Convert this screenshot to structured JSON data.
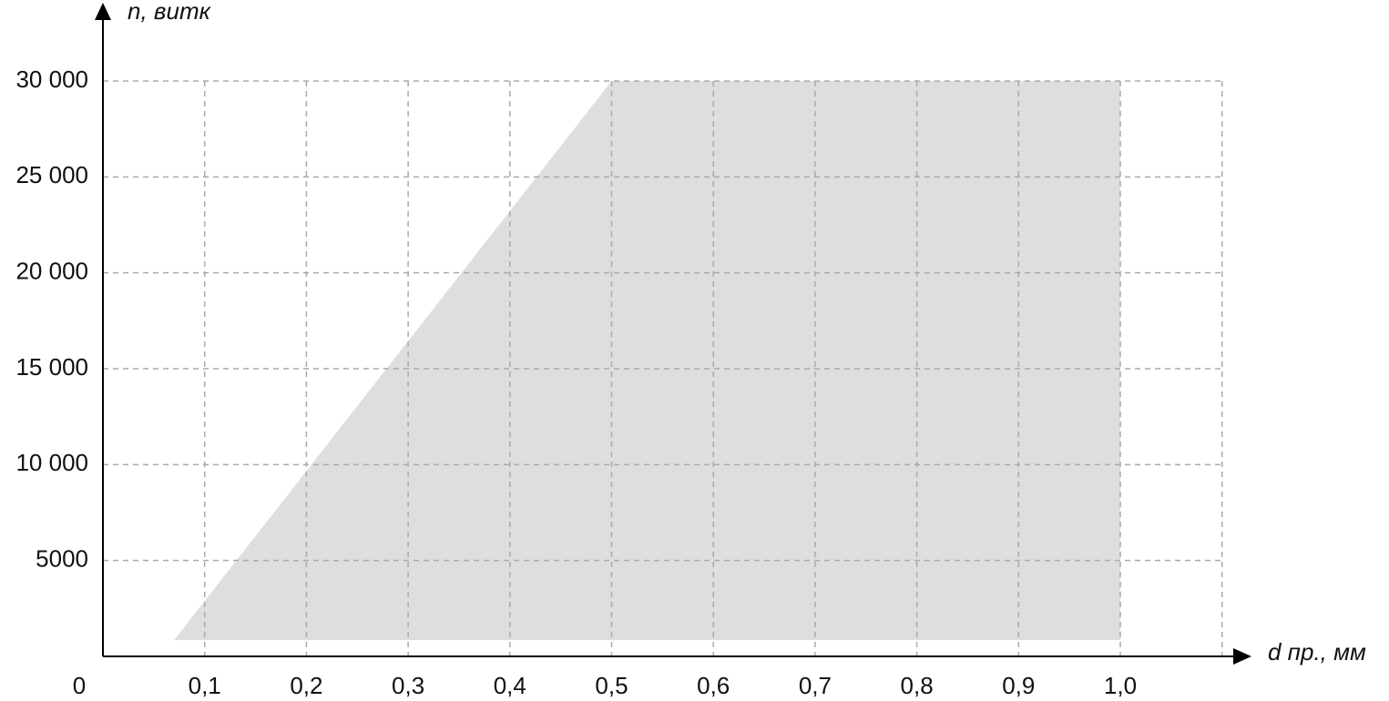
{
  "chart_data": {
    "type": "area",
    "x": [
      0.07,
      0.5,
      1.0,
      1.0
    ],
    "values": [
      850,
      30000,
      30000,
      850
    ],
    "color": "#dedede",
    "xlabel": "d пр., мм",
    "ylabel": "n, витк",
    "xlim": [
      0,
      1.1
    ],
    "ylim": [
      0,
      30000
    ],
    "xticks": [
      0,
      {
        "value": 0.1,
        "label": "0,1"
      },
      {
        "value": 0.2,
        "label": "0,2"
      },
      {
        "value": 0.3,
        "label": "0,3"
      },
      {
        "value": 0.4,
        "label": "0,4"
      },
      {
        "value": 0.5,
        "label": "0,5"
      },
      {
        "value": 0.6,
        "label": "0,6"
      },
      {
        "value": 0.7,
        "label": "0,7"
      },
      {
        "value": 0.8,
        "label": "0,8"
      },
      {
        "value": 0.9,
        "label": "0,9"
      },
      {
        "value": 1.0,
        "label": "1,0"
      }
    ],
    "yticks": [
      5000,
      {
        "value": 10000,
        "label": "10 000"
      },
      {
        "value": 15000,
        "label": "15 000"
      },
      {
        "value": 20000,
        "label": "20 000"
      },
      {
        "value": 25000,
        "label": "25 000"
      },
      {
        "value": 30000,
        "label": "30 000"
      }
    ],
    "grid": true
  }
}
